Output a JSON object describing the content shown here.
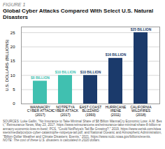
{
  "chart_data": {
    "type": "bar",
    "subtitle": "FIGURE 1",
    "title": "Global Cyber Attacks Compared With Select U.S. Natural Disasters",
    "categories": [
      "WANNACRY\nCYBER ATTACK\n(2017)",
      "NOTPETYA\nCYBER ATTACK\n(2017)",
      "EAST COAST\nBLIZZARD\n(1993)",
      "HURRICANE\nIRENE\n(2011)",
      "CALIFORNIA\nWILDFIRES\n(2018)"
    ],
    "values": [
      8,
      10,
      10,
      16,
      25
    ],
    "value_labels": [
      "$8 BILLION",
      "$10 BILLION",
      "$10 BILLION",
      "$16 BILLION",
      "$25 BILLION"
    ],
    "data_labels": true,
    "colors": [
      "#40c0b0",
      "#40c0b0",
      "#1b3a6b",
      "#1b3a6b",
      "#1b3a6b"
    ],
    "ylabel": "U.S. DOLLARS (BILLIONS)",
    "ylim": [
      0,
      27
    ],
    "yticks": [
      0,
      5,
      10,
      15,
      20,
      25
    ],
    "grid": true,
    "source": "SOURCES: Luke Gallin, \"No Insurance to Take Minimal Share of $8 Billion WannaCry Economic Loss: A.M. Best,\" Reinsurance News, May 23, 2017, https://www.reinsurancene.ws/reinsurance-take-minimal-share-8-billion-wannacry-economic-loss-m-best/; PCS, \"Could NotPetya's Tail Be Growing?,\" 2019, https://www.verisk.com/siteassets/media/pcs/pcs-cyber-catastrophe-notpetya-tail.pdf; and National Oceanic and Atmospheric Administration, \"Billion-Dollar Weather and Climate Disasters: Events,\" 2021, https://www.ncdc.noaa.gov/billions/events.",
    "note": "NOTE: The cost of these U.S. disasters is calculated in 2020 dollars."
  }
}
